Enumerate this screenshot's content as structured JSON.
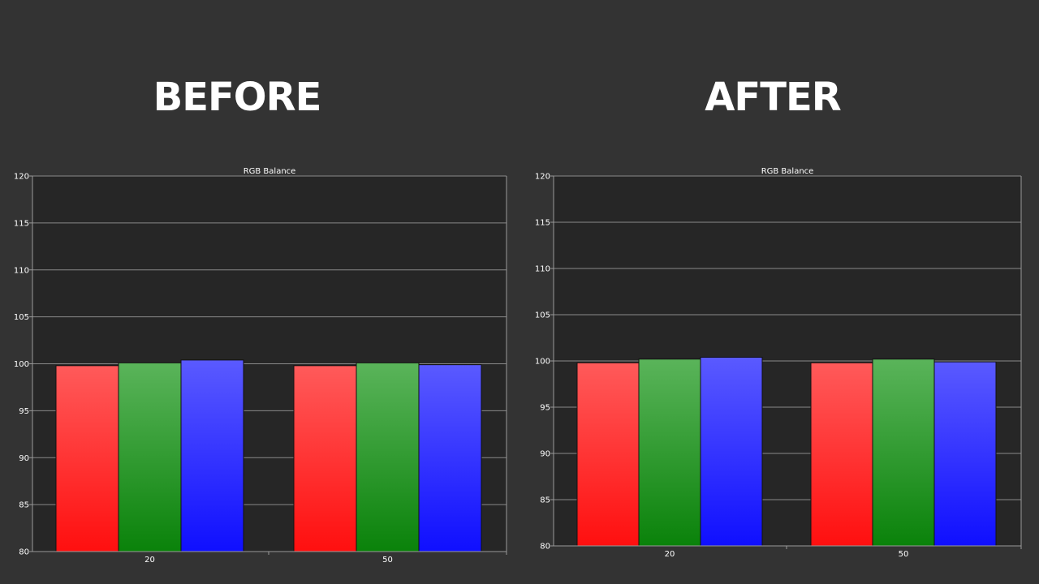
{
  "headings": {
    "before": "BEFORE",
    "after": "AFTER"
  },
  "colors": {
    "page_background": "#333333",
    "plot_background": "#262626",
    "gridline": "#8a8a8a",
    "axis": "#9a9a9a",
    "red_top": "#ff5a5a",
    "red_bottom": "#ff0f0f",
    "green_top": "#5ab45a",
    "green_bottom": "#0a820a",
    "blue_top": "#5a5aff",
    "blue_bottom": "#0f0fff"
  },
  "chart_data": [
    {
      "type": "bar",
      "panel": "before",
      "title": "RGB Balance",
      "categories": [
        "20",
        "50"
      ],
      "series": [
        {
          "color": "red",
          "values": [
            99.8,
            99.8
          ]
        },
        {
          "color": "green",
          "values": [
            100.1,
            100.1
          ]
        },
        {
          "color": "blue",
          "values": [
            100.4,
            99.9
          ]
        }
      ],
      "ylim": [
        80,
        120
      ],
      "yticks": [
        "80",
        "85",
        "90",
        "95",
        "100",
        "105",
        "110",
        "115",
        "120"
      ],
      "grid": true
    },
    {
      "type": "bar",
      "panel": "after",
      "title": "RGB Balance",
      "categories": [
        "20",
        "50"
      ],
      "series": [
        {
          "color": "red",
          "values": [
            99.8,
            99.8
          ]
        },
        {
          "color": "green",
          "values": [
            100.2,
            100.2
          ]
        },
        {
          "color": "blue",
          "values": [
            100.4,
            99.9
          ]
        }
      ],
      "ylim": [
        80,
        120
      ],
      "yticks": [
        "80",
        "85",
        "90",
        "95",
        "100",
        "105",
        "110",
        "115",
        "120"
      ],
      "grid": true
    }
  ]
}
